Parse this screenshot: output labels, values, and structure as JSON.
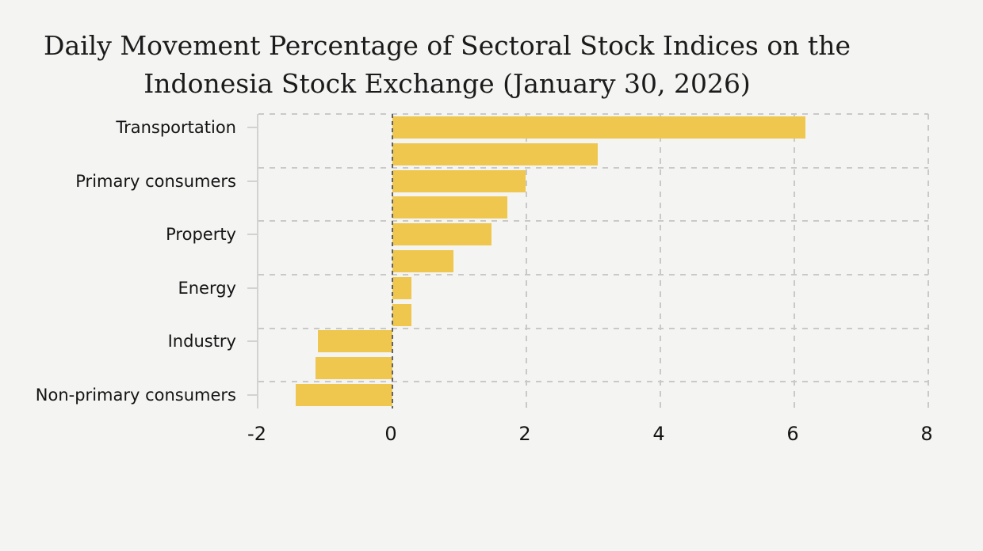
{
  "title": {
    "line1": "Daily Movement Percentage of Sectoral Stock Indices on the",
    "line2": "Indonesia Stock Exchange (January 30, 2026)"
  },
  "chart_data": {
    "type": "bar",
    "orientation": "horizontal",
    "title": "Daily Movement Percentage of Sectoral Stock Indices on the Indonesia Stock Exchange (January 30, 2026)",
    "categories": [
      "Transportation",
      "",
      "Primary consumers",
      "",
      "Property",
      "",
      "Energy",
      "",
      "Industry",
      "",
      "Non-primary consumers"
    ],
    "values": [
      6.16,
      3.07,
      1.99,
      1.72,
      1.48,
      0.91,
      0.28,
      0.28,
      -1.11,
      -1.15,
      -1.44
    ],
    "xlabel": "",
    "ylabel": "",
    "xlim": [
      -2,
      8
    ],
    "x_ticks": [
      -2,
      0,
      2,
      4,
      6,
      8
    ],
    "grid": true,
    "legend": false,
    "y_labels_shown_on_alternate_bars": true,
    "colors": {
      "bar": "#efc74f",
      "grid_light": "#c9c9c9",
      "zero_line": "#636363",
      "axis": "#d2d2d2",
      "text": "#141414",
      "background": "#f4f4f3"
    }
  }
}
